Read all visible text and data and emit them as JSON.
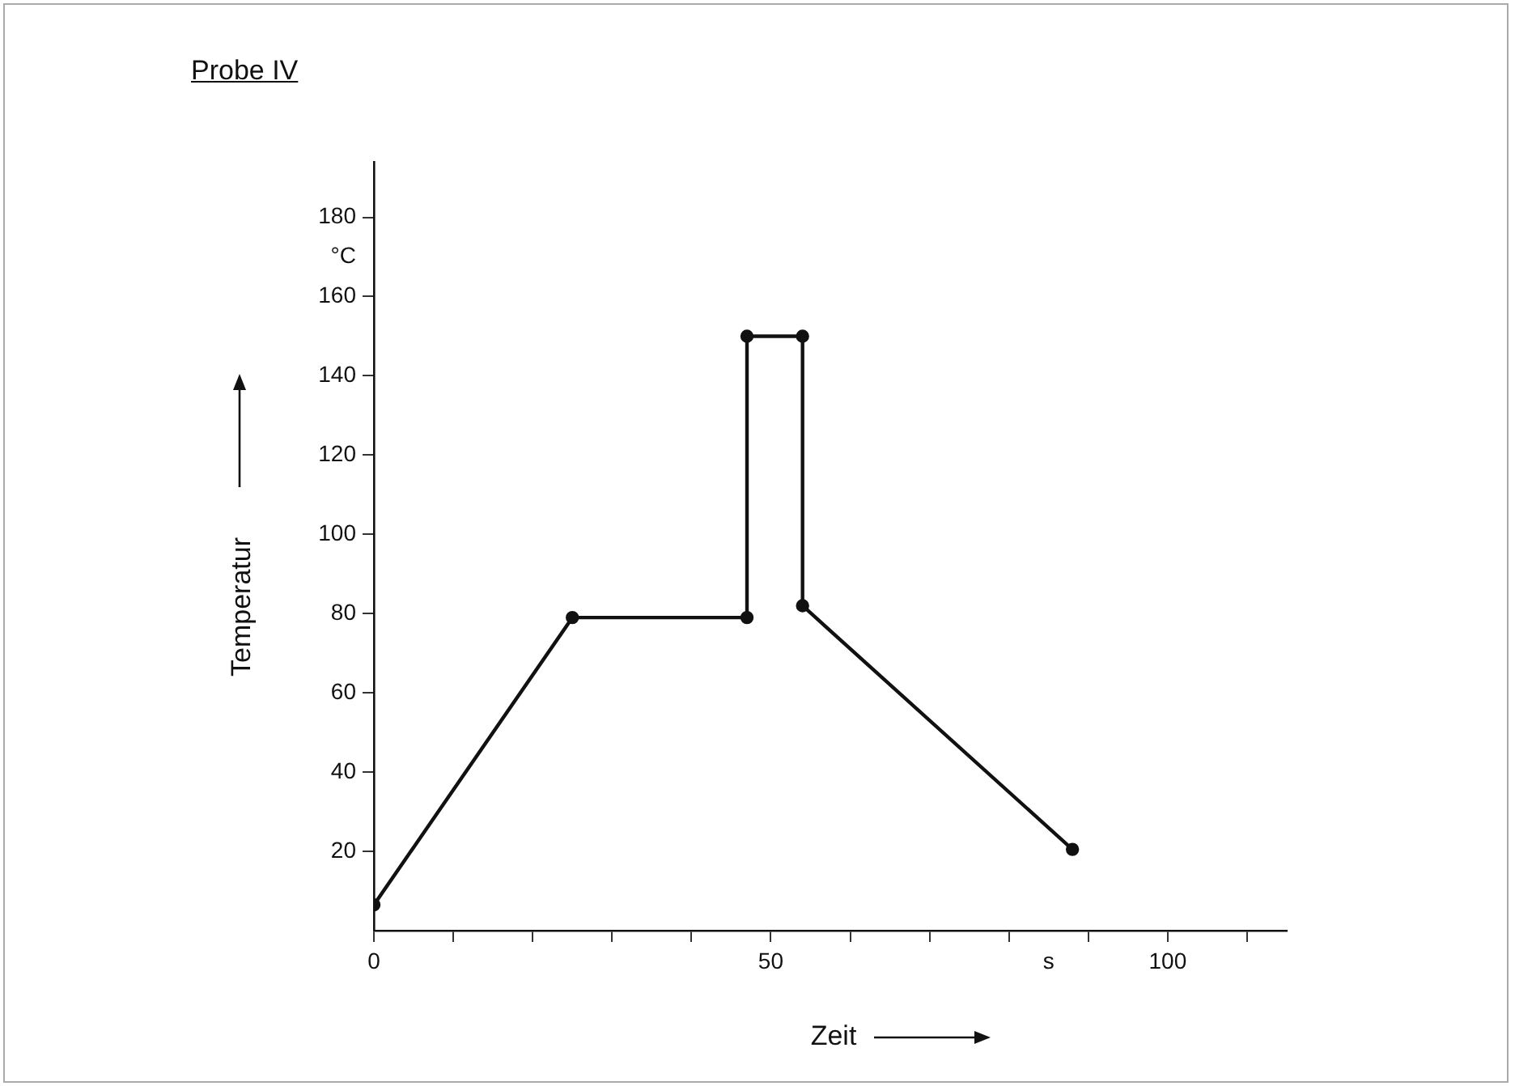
{
  "chart_data": {
    "type": "line",
    "title": "Probe IV",
    "xlabel": "Zeit",
    "ylabel": "Temperatur",
    "x": [
      0,
      25,
      47,
      47,
      54,
      54,
      88
    ],
    "series": [
      {
        "color": "#111111",
        "values": [
          6.5,
          79,
          79,
          150,
          150,
          82,
          20.5
        ]
      }
    ],
    "marker": "circle",
    "line_style": "solid",
    "xlim": [
      0,
      115
    ],
    "ylim": [
      0,
      194
    ],
    "xticks": [
      0,
      {
        "value": 10,
        "label": null
      },
      {
        "value": 20,
        "label": null
      },
      {
        "value": 30,
        "label": null
      },
      {
        "value": 40,
        "label": null
      },
      50,
      {
        "value": 60,
        "label": null
      },
      {
        "value": 70,
        "label": null
      },
      {
        "value": 80,
        "label": null
      },
      {
        "value": 85,
        "label": "s"
      },
      {
        "value": 90,
        "label": null
      },
      100,
      {
        "value": 110,
        "label": null
      }
    ],
    "yticks": [
      20,
      40,
      60,
      80,
      100,
      120,
      140,
      160,
      {
        "value": 170,
        "label": "°C"
      },
      180
    ]
  }
}
